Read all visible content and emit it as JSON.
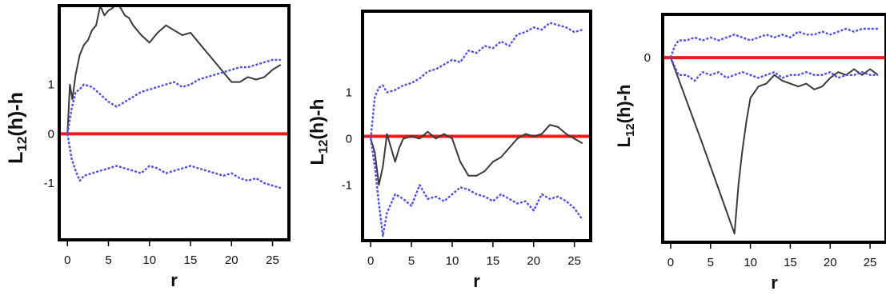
{
  "colors": {
    "observed": "#3a3a3a",
    "envelope": "#4f4fe6",
    "reference": "#ee1b1b",
    "frame": "#000000"
  },
  "chart_data": [
    {
      "type": "line",
      "xlabel": "r",
      "ylabel": "L12(h)-h",
      "ylabel_main": "L",
      "ylabel_sub": "12",
      "ylabel_rest": "(h)-h",
      "xlim": [
        -1,
        27
      ],
      "ylim": [
        -2.15,
        2.6
      ],
      "xticks": [
        0,
        5,
        10,
        15,
        20,
        25
      ],
      "yticks": [
        1,
        0,
        -1
      ],
      "ytick_labels": [
        "1",
        "0",
        "-1"
      ],
      "reference_y": 0,
      "series": [
        {
          "role": "observed",
          "x": [
            0,
            0.3,
            0.6,
            1,
            1.5,
            2,
            2.5,
            3,
            3.5,
            4,
            4.5,
            5,
            5.5,
            6,
            6.5,
            7,
            7.5,
            8,
            9,
            10,
            11,
            12,
            13,
            14,
            15,
            16,
            17,
            18,
            19,
            20,
            21,
            22,
            23,
            24,
            25,
            26
          ],
          "y": [
            0,
            1.0,
            0.7,
            1.2,
            1.6,
            1.8,
            1.9,
            2.1,
            2.2,
            2.6,
            2.4,
            2.5,
            2.55,
            2.65,
            2.55,
            2.4,
            2.35,
            2.2,
            2.0,
            1.85,
            2.05,
            2.2,
            2.1,
            2.0,
            2.05,
            1.85,
            1.65,
            1.45,
            1.25,
            1.05,
            1.05,
            1.15,
            1.1,
            1.15,
            1.3,
            1.4
          ]
        },
        {
          "role": "upper-envelope",
          "x": [
            0,
            0.5,
            1,
            1.5,
            2,
            3,
            4,
            5,
            6,
            7,
            8,
            9,
            10,
            11,
            12,
            13,
            14,
            15,
            16,
            17,
            18,
            19,
            20,
            21,
            22,
            23,
            24,
            25,
            26
          ],
          "y": [
            0,
            0.5,
            0.85,
            0.9,
            1.0,
            0.95,
            0.8,
            0.65,
            0.55,
            0.65,
            0.75,
            0.85,
            0.9,
            0.95,
            1.0,
            1.05,
            0.95,
            1.0,
            1.1,
            1.15,
            1.2,
            1.25,
            1.3,
            1.35,
            1.35,
            1.4,
            1.45,
            1.5,
            1.5
          ]
        },
        {
          "role": "lower-envelope",
          "x": [
            0,
            0.5,
            1,
            1.5,
            2,
            3,
            4,
            5,
            6,
            7,
            8,
            9,
            10,
            11,
            12,
            13,
            14,
            15,
            16,
            17,
            18,
            19,
            20,
            21,
            22,
            23,
            24,
            25,
            26
          ],
          "y": [
            0,
            -0.5,
            -0.75,
            -0.95,
            -0.85,
            -0.8,
            -0.75,
            -0.7,
            -0.65,
            -0.7,
            -0.75,
            -0.8,
            -0.65,
            -0.7,
            -0.8,
            -0.75,
            -0.7,
            -0.65,
            -0.7,
            -0.75,
            -0.8,
            -0.85,
            -0.8,
            -0.9,
            -0.95,
            -0.9,
            -1.0,
            -1.05,
            -1.1
          ]
        }
      ]
    },
    {
      "type": "line",
      "xlabel": "r",
      "ylabel": "L12(h)-h",
      "ylabel_main": "L",
      "ylabel_sub": "12",
      "ylabel_rest": "(h)-h",
      "xlim": [
        -1,
        27
      ],
      "ylim": [
        -2.2,
        2.75
      ],
      "xticks": [
        0,
        5,
        10,
        15,
        20,
        25
      ],
      "yticks": [
        1,
        0,
        -1
      ],
      "ytick_labels": [
        "1",
        "0",
        "-1"
      ],
      "reference_y": 0.05,
      "series": [
        {
          "role": "observed",
          "x": [
            0,
            0.5,
            1,
            1.5,
            2,
            2.5,
            3,
            3.5,
            4,
            5,
            6,
            7,
            8,
            9,
            10,
            11,
            12,
            13,
            14,
            15,
            16,
            17,
            18,
            19,
            20,
            21,
            22,
            23,
            24,
            25,
            26
          ],
          "y": [
            0,
            -0.3,
            -1.0,
            -0.6,
            0.1,
            -0.2,
            -0.5,
            -0.2,
            0.0,
            0.05,
            0.0,
            0.15,
            0.0,
            0.1,
            0.0,
            -0.5,
            -0.8,
            -0.8,
            -0.7,
            -0.5,
            -0.4,
            -0.2,
            0.0,
            0.1,
            0.05,
            0.1,
            0.3,
            0.25,
            0.1,
            0.0,
            -0.1
          ]
        },
        {
          "role": "upper-envelope",
          "x": [
            0,
            0.5,
            1,
            1.5,
            2,
            3,
            4,
            5,
            6,
            7,
            8,
            9,
            10,
            11,
            12,
            13,
            14,
            15,
            16,
            17,
            18,
            19,
            20,
            21,
            22,
            23,
            24,
            25,
            26
          ],
          "y": [
            0,
            0.9,
            1.1,
            1.15,
            1.0,
            1.05,
            1.15,
            1.2,
            1.3,
            1.45,
            1.5,
            1.6,
            1.7,
            1.65,
            1.9,
            1.85,
            2.0,
            1.95,
            2.1,
            2.0,
            2.25,
            2.3,
            2.4,
            2.35,
            2.5,
            2.45,
            2.4,
            2.3,
            2.35
          ]
        },
        {
          "role": "lower-envelope",
          "x": [
            0,
            0.5,
            1,
            1.5,
            2,
            3,
            4,
            5,
            6,
            7,
            8,
            9,
            10,
            11,
            12,
            13,
            14,
            15,
            16,
            17,
            18,
            19,
            20,
            21,
            22,
            23,
            24,
            25,
            26
          ],
          "y": [
            0,
            -0.6,
            -1.4,
            -2.1,
            -1.6,
            -1.2,
            -1.3,
            -1.45,
            -1.0,
            -1.3,
            -1.25,
            -1.35,
            -1.2,
            -1.05,
            -1.1,
            -1.2,
            -1.25,
            -1.35,
            -1.2,
            -1.3,
            -1.4,
            -1.35,
            -1.55,
            -1.2,
            -1.3,
            -1.25,
            -1.35,
            -1.5,
            -1.75
          ]
        }
      ]
    },
    {
      "type": "line",
      "xlabel": "r",
      "ylabel": "L12(h)-h",
      "ylabel_main": "L",
      "ylabel_sub": "12",
      "ylabel_rest": "(h)-h",
      "xlim": [
        -1,
        27
      ],
      "ylim": [
        -3.2,
        0.75
      ],
      "xticks": [
        0,
        5,
        10,
        15,
        20,
        25
      ],
      "yticks": [
        0
      ],
      "ytick_labels": [
        "0"
      ],
      "reference_y": 0,
      "series": [
        {
          "role": "observed",
          "x": [
            0,
            4,
            8,
            8.5,
            9,
            9.5,
            10,
            11,
            12,
            13,
            14,
            15,
            16,
            17,
            18,
            19,
            20,
            21,
            22,
            23,
            24,
            25,
            26
          ],
          "y": [
            0,
            -1.5,
            -3.05,
            -2.2,
            -1.6,
            -1.1,
            -0.7,
            -0.5,
            -0.45,
            -0.3,
            -0.4,
            -0.45,
            -0.5,
            -0.45,
            -0.55,
            -0.5,
            -0.35,
            -0.25,
            -0.3,
            -0.2,
            -0.3,
            -0.2,
            -0.3
          ]
        },
        {
          "role": "upper-envelope",
          "x": [
            0,
            0.5,
            1,
            2,
            3,
            4,
            5,
            6,
            7,
            8,
            9,
            10,
            11,
            12,
            13,
            14,
            15,
            16,
            17,
            18,
            19,
            20,
            21,
            22,
            23,
            24,
            25,
            26
          ],
          "y": [
            0,
            0.2,
            0.3,
            0.3,
            0.35,
            0.3,
            0.35,
            0.3,
            0.35,
            0.4,
            0.35,
            0.3,
            0.35,
            0.4,
            0.35,
            0.4,
            0.35,
            0.45,
            0.4,
            0.4,
            0.45,
            0.4,
            0.45,
            0.5,
            0.45,
            0.5,
            0.5,
            0.5
          ]
        },
        {
          "role": "lower-envelope",
          "x": [
            0,
            1,
            2,
            3,
            4,
            5,
            6,
            7,
            8,
            9,
            10,
            11,
            12,
            13,
            14,
            15,
            16,
            17,
            18,
            19,
            20,
            21,
            22,
            23,
            24,
            25,
            26
          ],
          "y": [
            0,
            -0.3,
            -0.3,
            -0.4,
            -0.25,
            -0.3,
            -0.25,
            -0.35,
            -0.3,
            -0.25,
            -0.3,
            -0.35,
            -0.3,
            -0.25,
            -0.35,
            -0.3,
            -0.3,
            -0.25,
            -0.3,
            -0.3,
            -0.25,
            -0.35,
            -0.3,
            -0.3,
            -0.25,
            -0.3,
            -0.3
          ]
        }
      ]
    }
  ]
}
